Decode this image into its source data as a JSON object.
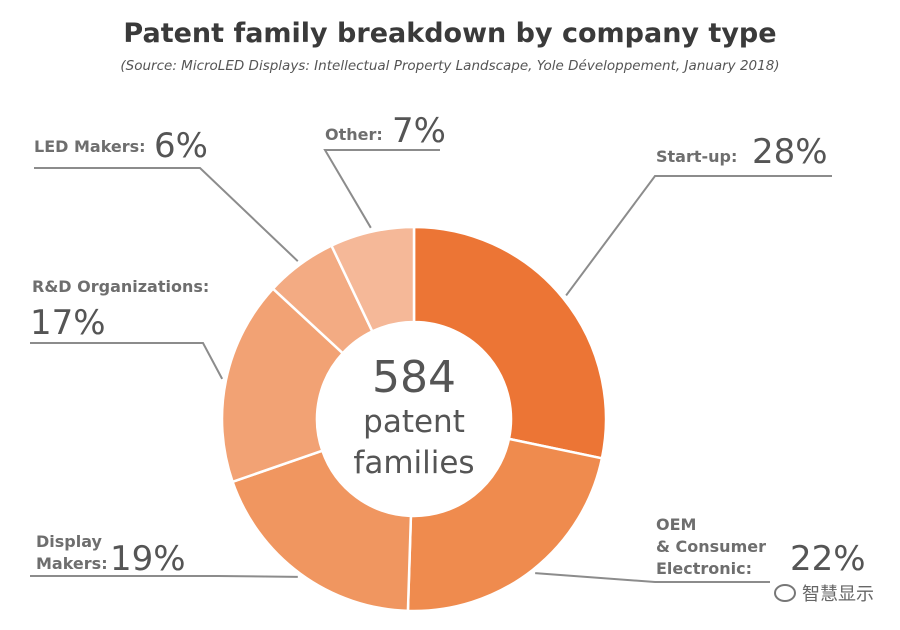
{
  "title": "Patent family breakdown by company type",
  "subtitle": "(Source: MicroLED Displays: Intellectual Property Landscape, Yole Développement, January 2018)",
  "center": {
    "number": "584",
    "line1": "patent",
    "line2": "families"
  },
  "watermark": {
    "text": "智慧显示",
    "icon": "wechat-icon"
  },
  "chart_data": {
    "type": "pie",
    "donut": true,
    "total": 584,
    "slices": [
      {
        "label": "Start-up:",
        "value": 28,
        "pct": "28%",
        "color": "#ec7535"
      },
      {
        "label": "OEM & Consumer Electronic:",
        "label_lines": [
          "OEM",
          "& Consumer",
          "Electronic:"
        ],
        "value": 22,
        "pct": "22%",
        "color": "#ef8b4e"
      },
      {
        "label": "Display Makers:",
        "label_lines": [
          "Display",
          "Makers:"
        ],
        "value": 19,
        "pct": "19%",
        "color": "#f09660"
      },
      {
        "label": "R&D Organizations:",
        "value": 17,
        "pct": "17%",
        "color": "#f2a274"
      },
      {
        "label": "LED Makers:",
        "value": 6,
        "pct": "6%",
        "color": "#f3ab83"
      },
      {
        "label": "Other:",
        "value": 7,
        "pct": "7%",
        "color": "#f5b898"
      }
    ]
  }
}
